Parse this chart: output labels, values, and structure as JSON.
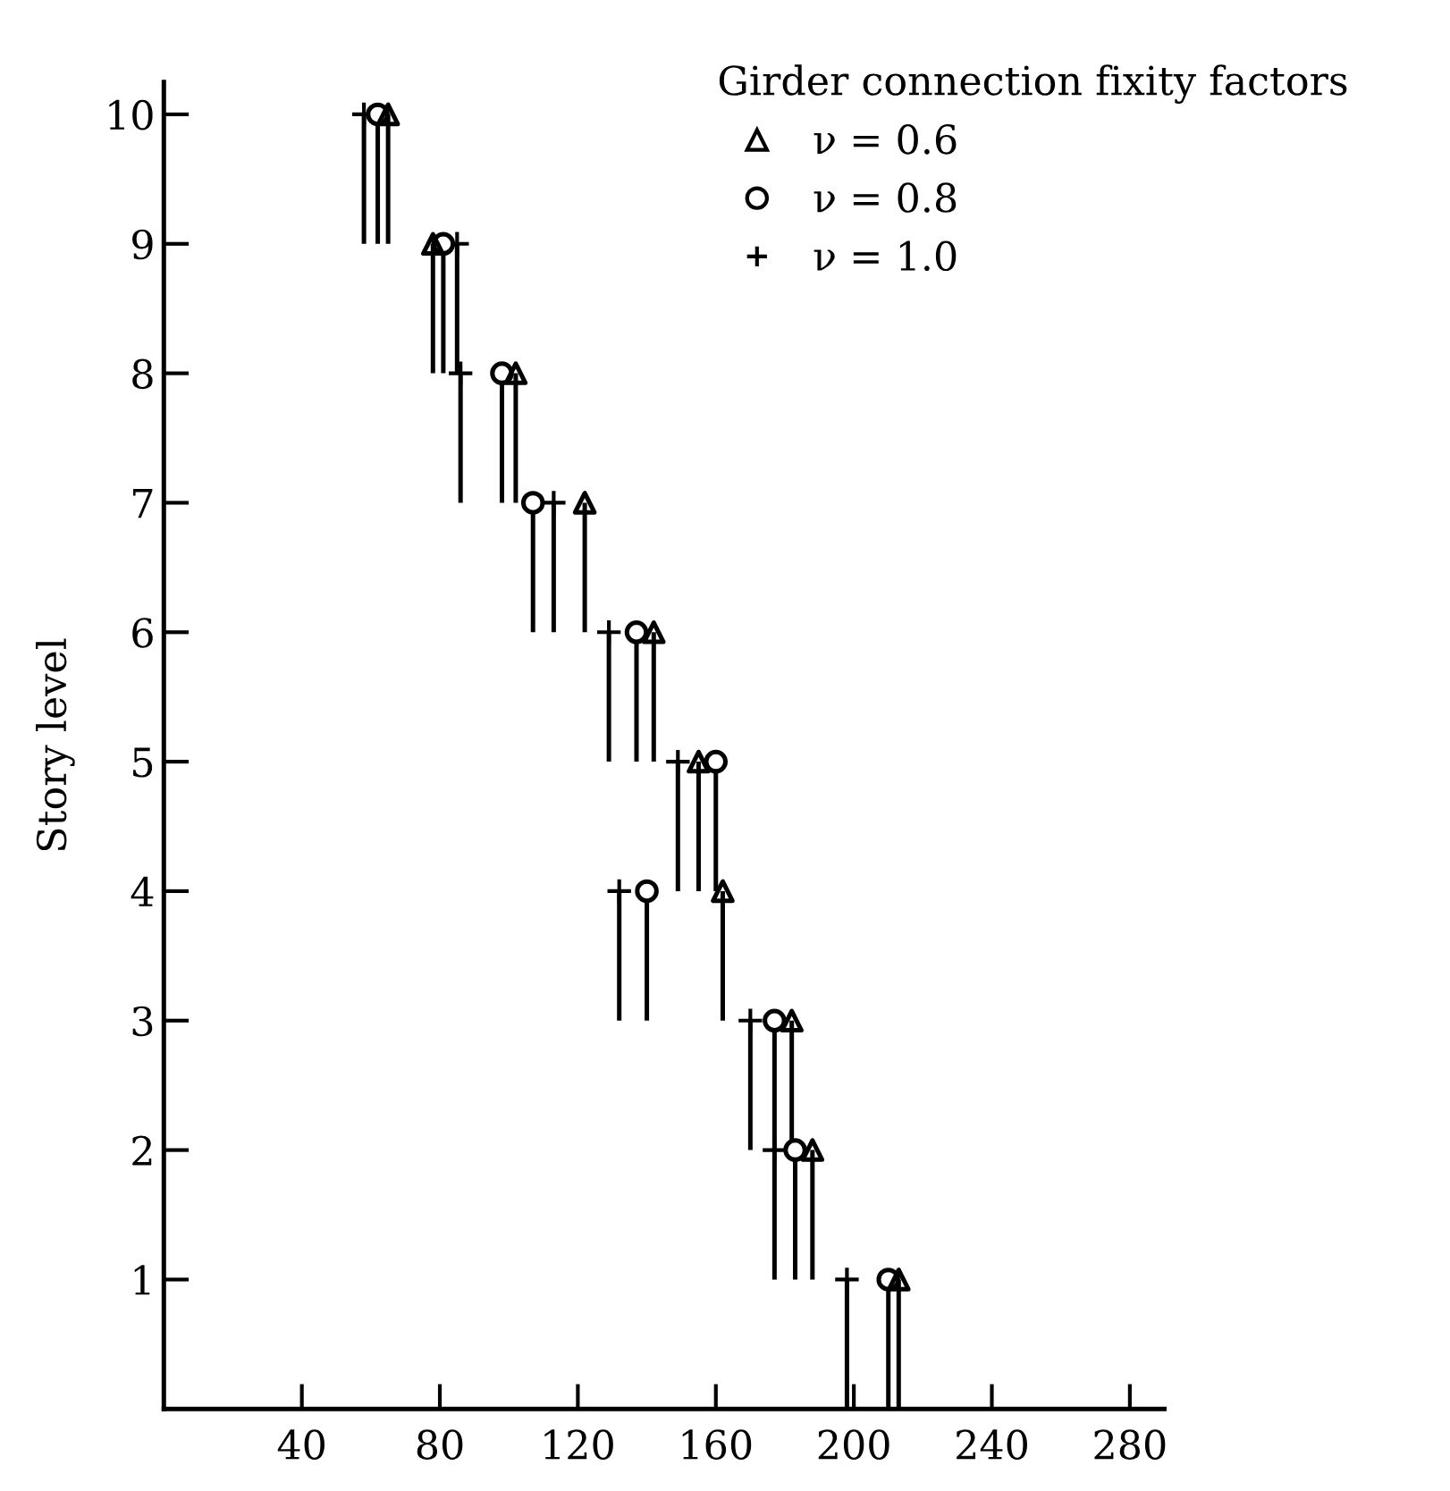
{
  "chart_data": {
    "type": "scatter",
    "ylabel": "Story level",
    "legend_title": "Girder connection fixity factors",
    "legend": "top right",
    "grid": false,
    "xlim": [
      0,
      290
    ],
    "xticks": [
      40,
      80,
      120,
      160,
      200,
      240,
      280
    ],
    "ylim": [
      0,
      10.25
    ],
    "yticks": [
      1,
      2,
      3,
      4,
      5,
      6,
      7,
      8,
      9,
      10
    ],
    "series": [
      {
        "name": "ν = 0.6",
        "color": "#000000",
        "marker": "triangle",
        "x": [
          213,
          188,
          182,
          162,
          155,
          142,
          122,
          102,
          78,
          65
        ],
        "values": [
          1,
          2,
          3,
          4,
          5,
          6,
          7,
          8,
          9,
          10
        ],
        "errors": [
          [
            0,
            1
          ],
          [
            1,
            2
          ],
          [
            2,
            3
          ],
          [
            3,
            4
          ],
          [
            4,
            5
          ],
          [
            5,
            6
          ],
          [
            6,
            7
          ],
          [
            7,
            8
          ],
          [
            8,
            9
          ],
          [
            9,
            10
          ]
        ]
      },
      {
        "name": "ν = 0.8",
        "color": "#000000",
        "marker": "circle",
        "x": [
          210,
          183,
          177,
          140,
          160,
          137,
          107,
          98,
          81,
          62
        ],
        "values": [
          1,
          2,
          3,
          4,
          5,
          6,
          7,
          8,
          9,
          10
        ],
        "errors": [
          [
            0,
            1
          ],
          [
            1,
            2
          ],
          [
            2,
            3
          ],
          [
            3,
            4
          ],
          [
            4,
            5
          ],
          [
            5,
            6
          ],
          [
            6,
            7
          ],
          [
            7,
            8
          ],
          [
            8,
            9
          ],
          [
            9,
            10
          ]
        ]
      },
      {
        "name": "ν = 1.0",
        "color": "#000000",
        "marker": "cross",
        "x": [
          198,
          177,
          170,
          132,
          149,
          129,
          113,
          86,
          85,
          58
        ],
        "values": [
          1,
          2,
          3,
          4,
          5,
          6,
          7,
          8,
          9,
          10
        ],
        "errors": [
          [
            0,
            1
          ],
          [
            1,
            2
          ],
          [
            2,
            3
          ],
          [
            3,
            4
          ],
          [
            4,
            5
          ],
          [
            5,
            6
          ],
          [
            6,
            7
          ],
          [
            7,
            8
          ],
          [
            8,
            9
          ],
          [
            9,
            10
          ]
        ]
      }
    ]
  }
}
